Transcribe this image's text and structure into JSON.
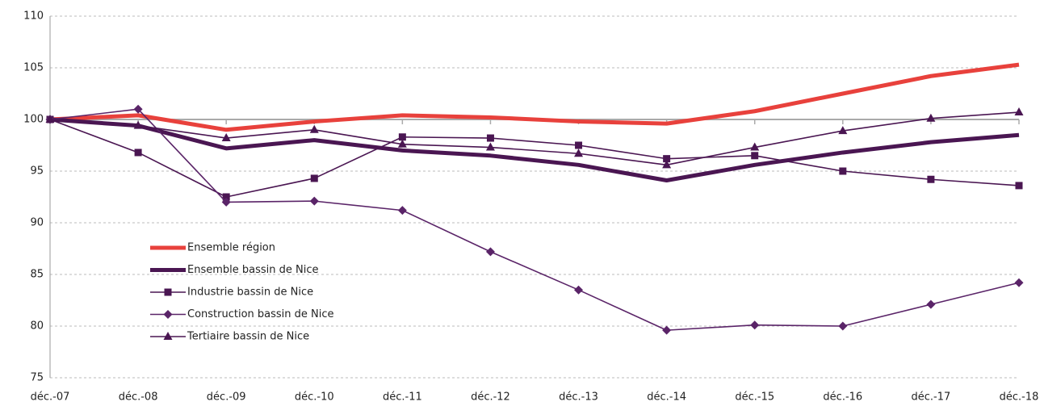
{
  "chart_data": {
    "type": "line",
    "categories": [
      "déc.-07",
      "déc.-08",
      "déc.-09",
      "déc.-10",
      "déc.-11",
      "déc.-12",
      "déc.-13",
      "déc.-14",
      "déc.-15",
      "déc.-16",
      "déc.-17",
      "déc.-18"
    ],
    "series": [
      {
        "name": "Ensemble région",
        "color": "#e8413c",
        "width": 5,
        "marker": "none",
        "values": [
          100,
          100.4,
          99.0,
          99.8,
          100.4,
          100.2,
          99.8,
          99.6,
          100.8,
          102.5,
          104.2,
          105.3
        ]
      },
      {
        "name": "Ensemble bassin de Nice",
        "color": "#4a1652",
        "width": 5,
        "marker": "none",
        "values": [
          100,
          99.4,
          97.2,
          98.0,
          97.0,
          96.5,
          95.6,
          94.1,
          95.6,
          96.8,
          97.8,
          98.5
        ]
      },
      {
        "name": "Industrie bassin de Nice",
        "color": "#4a1652",
        "width": 1.6,
        "marker": "square",
        "values": [
          100,
          96.8,
          92.5,
          94.3,
          98.3,
          98.2,
          97.5,
          96.2,
          96.5,
          95.0,
          94.2,
          93.6
        ]
      },
      {
        "name": "Construction bassin de Nice",
        "color": "#5a2468",
        "width": 1.6,
        "marker": "diamond",
        "values": [
          100,
          101.0,
          92.0,
          92.1,
          91.2,
          87.2,
          83.5,
          79.6,
          80.1,
          80.0,
          82.1,
          84.2
        ]
      },
      {
        "name": "Tertiaire bassin de Nice",
        "color": "#4a1652",
        "width": 1.6,
        "marker": "triangle",
        "values": [
          100,
          99.4,
          98.2,
          99.0,
          97.6,
          97.3,
          96.7,
          95.6,
          97.3,
          98.9,
          100.1,
          100.7
        ]
      }
    ],
    "ylim": [
      75,
      110
    ],
    "yticks": [
      75,
      80,
      85,
      90,
      95,
      100,
      105,
      110
    ],
    "x_axis_at": 100,
    "grid": true,
    "legend": "left"
  }
}
